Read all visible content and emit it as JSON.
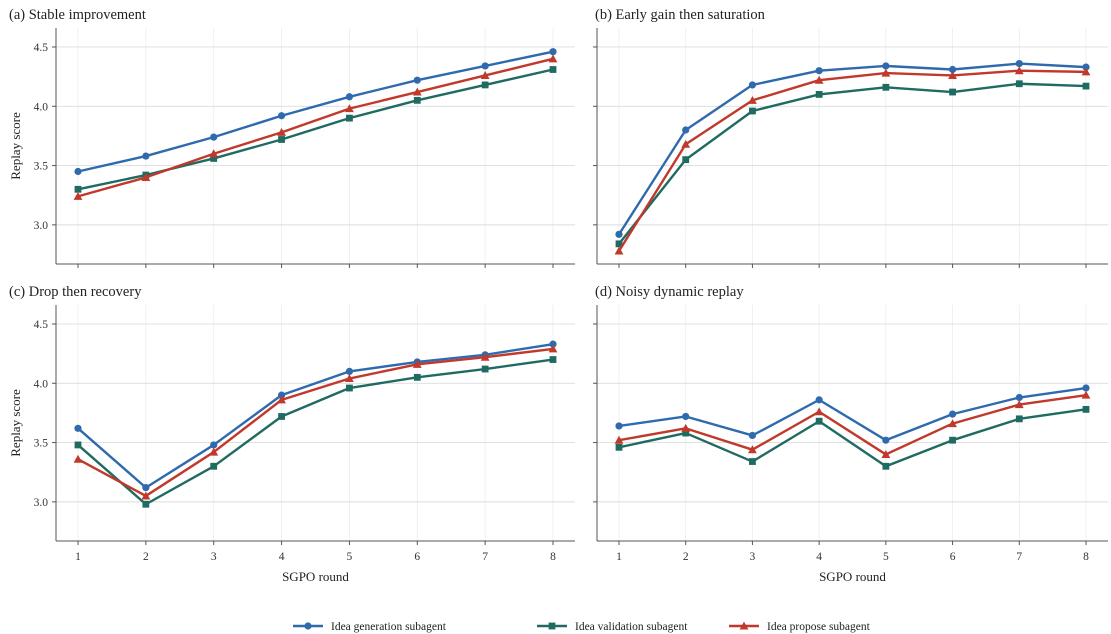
{
  "chart_data": {
    "type": "line",
    "x": [
      1,
      2,
      3,
      4,
      5,
      6,
      7,
      8
    ],
    "xlabel": "SGPO round",
    "ylabel": "Replay score",
    "ylim": [
      2.67,
      4.66
    ],
    "yticks": [
      "3.0",
      "3.5",
      "4.0",
      "4.5"
    ],
    "xticks": [
      "1",
      "2",
      "3",
      "4",
      "5",
      "6",
      "7",
      "8"
    ],
    "grid": true,
    "legend_position": "bottom-center",
    "legend": [
      {
        "name": "Idea generation subagent",
        "color": "#2e6aad",
        "marker": "circle"
      },
      {
        "name": "Idea validation subagent",
        "color": "#1f6b62",
        "marker": "square"
      },
      {
        "name": "Idea propose subagent",
        "color": "#c0392b",
        "marker": "triangle"
      }
    ],
    "panels": [
      {
        "title": "(a) Stable improvement",
        "series": [
          {
            "name": "Idea generation subagent",
            "values": [
              3.45,
              3.58,
              3.74,
              3.92,
              4.08,
              4.22,
              4.34,
              4.46
            ]
          },
          {
            "name": "Idea validation subagent",
            "values": [
              3.3,
              3.42,
              3.56,
              3.72,
              3.9,
              4.05,
              4.18,
              4.31
            ]
          },
          {
            "name": "Idea propose subagent",
            "values": [
              3.24,
              3.4,
              3.6,
              3.78,
              3.98,
              4.12,
              4.26,
              4.4
            ]
          }
        ]
      },
      {
        "title": "(b) Early gain then saturation",
        "series": [
          {
            "name": "Idea generation subagent",
            "values": [
              2.92,
              3.8,
              4.18,
              4.3,
              4.34,
              4.31,
              4.36,
              4.33
            ]
          },
          {
            "name": "Idea validation subagent",
            "values": [
              2.84,
              3.55,
              3.96,
              4.1,
              4.16,
              4.12,
              4.19,
              4.17
            ]
          },
          {
            "name": "Idea propose subagent",
            "values": [
              2.78,
              3.68,
              4.05,
              4.22,
              4.28,
              4.26,
              4.3,
              4.29
            ]
          }
        ]
      },
      {
        "title": "(c) Drop then recovery",
        "series": [
          {
            "name": "Idea generation subagent",
            "values": [
              3.62,
              3.12,
              3.48,
              3.9,
              4.1,
              4.18,
              4.24,
              4.33
            ]
          },
          {
            "name": "Idea validation subagent",
            "values": [
              3.48,
              2.98,
              3.3,
              3.72,
              3.96,
              4.05,
              4.12,
              4.2
            ]
          },
          {
            "name": "Idea propose subagent",
            "values": [
              3.36,
              3.05,
              3.42,
              3.86,
              4.04,
              4.16,
              4.22,
              4.29
            ]
          }
        ]
      },
      {
        "title": "(d) Noisy dynamic replay",
        "series": [
          {
            "name": "Idea generation subagent",
            "values": [
              3.64,
              3.72,
              3.56,
              3.86,
              3.52,
              3.74,
              3.88,
              3.96
            ]
          },
          {
            "name": "Idea validation subagent",
            "values": [
              3.46,
              3.58,
              3.34,
              3.68,
              3.3,
              3.52,
              3.7,
              3.78
            ]
          },
          {
            "name": "Idea propose subagent",
            "values": [
              3.52,
              3.62,
              3.44,
              3.76,
              3.4,
              3.66,
              3.82,
              3.9
            ]
          }
        ]
      }
    ]
  }
}
